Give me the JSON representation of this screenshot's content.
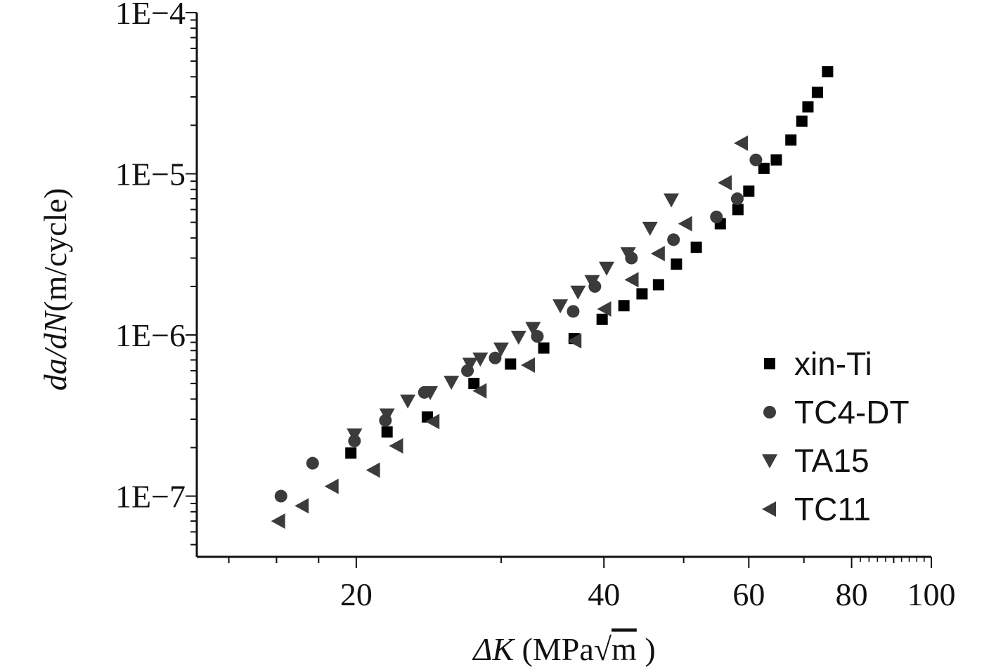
{
  "chart_data": {
    "type": "scatter",
    "title": "",
    "xlabel_prefix": "ΔK",
    "xlabel_unit_open": " (MPa",
    "xlabel_sqrt": "√",
    "xlabel_unit_m": "m",
    "xlabel_unit_close": " )",
    "ylabel_part1": "da",
    "ylabel_slash": "/",
    "ylabel_part2": "dN",
    "ylabel_unit": "(m/cycle)",
    "xscale": "log",
    "yscale": "log",
    "xlim": [
      12.8,
      100
    ],
    "ylim": [
      4.2e-08,
      0.0001
    ],
    "x_tick_labels": [
      {
        "value": 20,
        "label": "20"
      },
      {
        "value": 40,
        "label": "40"
      },
      {
        "value": 60,
        "label": "60"
      },
      {
        "value": 80,
        "label": "80"
      },
      {
        "value": 100,
        "label": "100"
      }
    ],
    "y_tick_labels": [
      {
        "value": 1e-07,
        "label": "1E−7"
      },
      {
        "value": 1e-06,
        "label": "1E−6"
      },
      {
        "value": 1e-05,
        "label": "1E−5"
      },
      {
        "value": 0.0001,
        "label": "1E−4"
      }
    ],
    "legend_position": "lower-right",
    "series": [
      {
        "name": "xin-Ti",
        "marker": "square",
        "color": "#000000",
        "points": [
          [
            19.7,
            1.85e-07
          ],
          [
            21.8,
            2.5e-07
          ],
          [
            24.4,
            3.1e-07
          ],
          [
            27.8,
            5e-07
          ],
          [
            30.8,
            6.6e-07
          ],
          [
            33.8,
            8.3e-07
          ],
          [
            36.8,
            9.5e-07
          ],
          [
            39.8,
            1.25e-06
          ],
          [
            42.3,
            1.52e-06
          ],
          [
            44.5,
            1.8e-06
          ],
          [
            46.6,
            2.05e-06
          ],
          [
            49.0,
            2.75e-06
          ],
          [
            51.8,
            3.5e-06
          ],
          [
            55.4,
            4.9e-06
          ],
          [
            58.2,
            6e-06
          ],
          [
            60.0,
            7.8e-06
          ],
          [
            62.6,
            1.08e-05
          ],
          [
            64.8,
            1.22e-05
          ],
          [
            67.5,
            1.62e-05
          ],
          [
            69.6,
            2.12e-05
          ],
          [
            70.8,
            2.6e-05
          ],
          [
            72.7,
            3.2e-05
          ],
          [
            74.8,
            4.3e-05
          ]
        ]
      },
      {
        "name": "TC4-DT",
        "marker": "circle",
        "color": "#3b3b3b",
        "points": [
          [
            16.2,
            1e-07
          ],
          [
            17.7,
            1.6e-07
          ],
          [
            19.9,
            2.2e-07
          ],
          [
            21.7,
            2.95e-07
          ],
          [
            24.2,
            4.4e-07
          ],
          [
            27.3,
            6e-07
          ],
          [
            29.5,
            7.2e-07
          ],
          [
            33.2,
            9.8e-07
          ],
          [
            36.7,
            1.4e-06
          ],
          [
            39.0,
            2e-06
          ],
          [
            43.2,
            3e-06
          ],
          [
            48.6,
            3.9e-06
          ],
          [
            54.8,
            5.4e-06
          ],
          [
            58.1,
            7e-06
          ],
          [
            61.2,
            1.22e-05
          ]
        ]
      },
      {
        "name": "TA15",
        "marker": "triangle-down",
        "color": "#3b3b3b",
        "points": [
          [
            19.9,
            2.4e-07
          ],
          [
            21.8,
            3.2e-07
          ],
          [
            23.1,
            3.9e-07
          ],
          [
            24.6,
            4.4e-07
          ],
          [
            26.1,
            5.1e-07
          ],
          [
            27.5,
            6.6e-07
          ],
          [
            28.3,
            7.1e-07
          ],
          [
            30.0,
            8.2e-07
          ],
          [
            31.5,
            9.7e-07
          ],
          [
            32.8,
            1.1e-06
          ],
          [
            35.4,
            1.52e-06
          ],
          [
            37.2,
            1.85e-06
          ],
          [
            38.7,
            2.15e-06
          ],
          [
            40.3,
            2.6e-06
          ],
          [
            42.8,
            3.2e-06
          ],
          [
            45.5,
            4.6e-06
          ],
          [
            48.3,
            6.9e-06
          ]
        ]
      },
      {
        "name": "TC11",
        "marker": "triangle-left",
        "color": "#3b3b3b",
        "points": [
          [
            16.1,
            7e-08
          ],
          [
            17.2,
            8.7e-08
          ],
          [
            18.7,
            1.15e-07
          ],
          [
            21.0,
            1.45e-07
          ],
          [
            22.4,
            2.05e-07
          ],
          [
            24.8,
            2.9e-07
          ],
          [
            28.3,
            4.5e-07
          ],
          [
            32.4,
            6.5e-07
          ],
          [
            36.9,
            9.2e-07
          ],
          [
            40.1,
            1.45e-06
          ],
          [
            43.3,
            2.2e-06
          ],
          [
            46.6,
            3.2e-06
          ],
          [
            50.3,
            4.9e-06
          ],
          [
            56.2,
            8.8e-06
          ],
          [
            58.8,
            1.55e-05
          ]
        ]
      }
    ]
  }
}
